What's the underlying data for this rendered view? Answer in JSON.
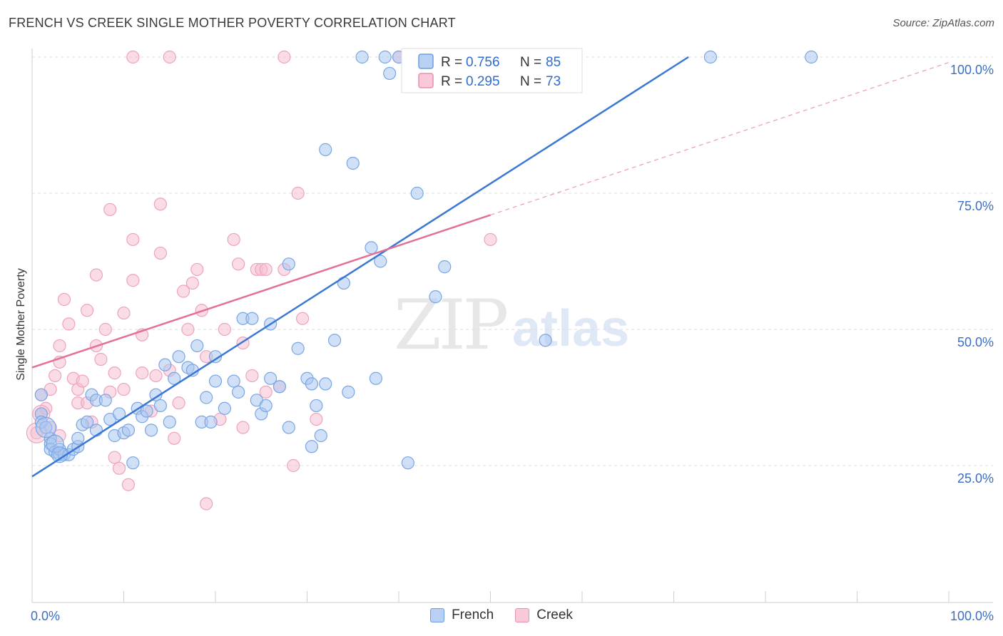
{
  "title": "FRENCH VS CREEK SINGLE MOTHER POVERTY CORRELATION CHART",
  "source": "Source: ZipAtlas.com",
  "watermark": {
    "zip": "ZIP",
    "atlas": "atlas"
  },
  "colors": {
    "french": "#3a78d4",
    "creek": "#e46f98",
    "french_fill": "#a9c6f0",
    "creek_fill": "#f6bfd1",
    "axis_text": "#3a6fc4"
  },
  "legend": {
    "french": {
      "r_label": "R = ",
      "r_value": "0.756",
      "n_label": "N = ",
      "n_value": "85",
      "name": "French"
    },
    "creek": {
      "r_label": "R = ",
      "r_value": "0.295",
      "n_label": "N = ",
      "n_value": "73",
      "name": "Creek"
    }
  },
  "chart_data": {
    "type": "scatter",
    "title": "FRENCH VS CREEK SINGLE MOTHER POVERTY CORRELATION CHART",
    "xlabel": "",
    "ylabel": "Single Mother Poverty",
    "xlim": [
      0,
      100
    ],
    "ylim": [
      0,
      100
    ],
    "x_tick_labels": {
      "min": "0.0%",
      "max": "100.0%"
    },
    "y_ticks": [
      {
        "value": 25,
        "label": "25.0%"
      },
      {
        "value": 50,
        "label": "50.0%"
      },
      {
        "value": 75,
        "label": "75.0%"
      },
      {
        "value": 100,
        "label": "100.0%"
      }
    ],
    "series": [
      {
        "name": "French",
        "color": "#3a78d4",
        "r": 0.756,
        "n": 85,
        "trend": {
          "x0": 0,
          "y0": 23,
          "x1": 71.6,
          "y1": 100,
          "dashed_to": null
        },
        "points": [
          [
            1,
            38
          ],
          [
            1,
            34.5
          ],
          [
            1,
            33
          ],
          [
            1.5,
            32
          ],
          [
            2,
            30
          ],
          [
            2,
            29
          ],
          [
            2,
            28
          ],
          [
            2.5,
            27.5
          ],
          [
            3,
            27
          ],
          [
            3,
            28
          ],
          [
            3.5,
            27
          ],
          [
            4,
            27
          ],
          [
            4.5,
            28
          ],
          [
            5,
            28.5
          ],
          [
            5,
            30
          ],
          [
            5.5,
            32.5
          ],
          [
            6,
            33
          ],
          [
            6.5,
            38
          ],
          [
            7,
            31.5
          ],
          [
            7,
            37
          ],
          [
            8,
            37
          ],
          [
            8.5,
            33.5
          ],
          [
            9,
            30.5
          ],
          [
            9.5,
            34.5
          ],
          [
            10,
            31
          ],
          [
            10.5,
            31.5
          ],
          [
            11,
            25.5
          ],
          [
            11.5,
            35.5
          ],
          [
            12,
            34
          ],
          [
            12.5,
            35
          ],
          [
            13,
            31.5
          ],
          [
            13.5,
            38
          ],
          [
            14,
            36
          ],
          [
            15,
            33
          ],
          [
            14.5,
            43.5
          ],
          [
            15.5,
            41
          ],
          [
            16,
            45
          ],
          [
            17,
            43
          ],
          [
            17.5,
            42.5
          ],
          [
            18,
            47
          ],
          [
            18.5,
            33
          ],
          [
            19,
            37.5
          ],
          [
            19.5,
            33
          ],
          [
            20,
            45
          ],
          [
            20,
            40.5
          ],
          [
            21,
            35.5
          ],
          [
            22,
            40.5
          ],
          [
            22.5,
            38.5
          ],
          [
            23,
            52
          ],
          [
            24,
            52
          ],
          [
            24.5,
            37
          ],
          [
            25,
            34.5
          ],
          [
            25.5,
            36
          ],
          [
            26,
            41
          ],
          [
            26,
            51
          ],
          [
            27,
            39.5
          ],
          [
            28,
            62
          ],
          [
            28,
            32
          ],
          [
            29,
            46.5
          ],
          [
            30,
            41
          ],
          [
            30.5,
            40
          ],
          [
            30.5,
            28.5
          ],
          [
            31,
            36
          ],
          [
            31.5,
            30.5
          ],
          [
            32,
            40
          ],
          [
            32,
            83
          ],
          [
            33,
            48
          ],
          [
            34,
            58.5
          ],
          [
            34.5,
            38.5
          ],
          [
            35,
            80.5
          ],
          [
            36,
            100
          ],
          [
            37,
            65
          ],
          [
            37.5,
            41
          ],
          [
            38,
            62.5
          ],
          [
            38.5,
            100
          ],
          [
            39,
            97
          ],
          [
            40,
            100
          ],
          [
            41,
            25.5
          ],
          [
            42,
            75
          ],
          [
            44,
            56
          ],
          [
            45,
            61.5
          ],
          [
            47,
            100
          ],
          [
            56,
            48
          ],
          [
            74,
            100
          ],
          [
            85,
            100
          ]
        ]
      },
      {
        "name": "Creek",
        "color": "#e46f98",
        "r": 0.295,
        "n": 73,
        "trend": {
          "x0": 0,
          "y0": 43,
          "x1": 50,
          "y1": 71,
          "dashed_to": [
            100,
            99
          ]
        },
        "points": [
          [
            0.5,
            31
          ],
          [
            1,
            34.5
          ],
          [
            1,
            38
          ],
          [
            1.5,
            35.5
          ],
          [
            2,
            39
          ],
          [
            2,
            32
          ],
          [
            2.5,
            41.5
          ],
          [
            3,
            44
          ],
          [
            3,
            47
          ],
          [
            3.5,
            55.5
          ],
          [
            4,
            51
          ],
          [
            3,
            30.5
          ],
          [
            4.5,
            41
          ],
          [
            5,
            39
          ],
          [
            5,
            36.5
          ],
          [
            5.5,
            40.5
          ],
          [
            6,
            53.5
          ],
          [
            6,
            36.5
          ],
          [
            6.5,
            33
          ],
          [
            7,
            60
          ],
          [
            7,
            47
          ],
          [
            7.5,
            44.5
          ],
          [
            8,
            50
          ],
          [
            8.5,
            38.5
          ],
          [
            8.5,
            72
          ],
          [
            9,
            42
          ],
          [
            9,
            26.5
          ],
          [
            9.5,
            24.5
          ],
          [
            10,
            53
          ],
          [
            10,
            39
          ],
          [
            10.5,
            21.5
          ],
          [
            11,
            59
          ],
          [
            11,
            66.5
          ],
          [
            12,
            49
          ],
          [
            12,
            42
          ],
          [
            13,
            35
          ],
          [
            13.5,
            41.5
          ],
          [
            14,
            73
          ],
          [
            14,
            64
          ],
          [
            15,
            42.5
          ],
          [
            15.5,
            30
          ],
          [
            16,
            36.5
          ],
          [
            16.5,
            57
          ],
          [
            17,
            50
          ],
          [
            17.5,
            58.5
          ],
          [
            18,
            61
          ],
          [
            18.5,
            53.5
          ],
          [
            19,
            45
          ],
          [
            19,
            18
          ],
          [
            20.5,
            33.5
          ],
          [
            21,
            50
          ],
          [
            22,
            66.5
          ],
          [
            22.5,
            62
          ],
          [
            23,
            47.5
          ],
          [
            23,
            32
          ],
          [
            24,
            41.5
          ],
          [
            24.5,
            61
          ],
          [
            25,
            61
          ],
          [
            25.5,
            38.5
          ],
          [
            25.5,
            61
          ],
          [
            27,
            39.5
          ],
          [
            27.5,
            61
          ],
          [
            27.5,
            100
          ],
          [
            28.5,
            25
          ],
          [
            29,
            75
          ],
          [
            29.5,
            52
          ],
          [
            31,
            33.5
          ],
          [
            40,
            100
          ],
          [
            41,
            100
          ],
          [
            47,
            100
          ],
          [
            50,
            66.5
          ],
          [
            15,
            100
          ],
          [
            11,
            100
          ]
        ]
      }
    ]
  }
}
